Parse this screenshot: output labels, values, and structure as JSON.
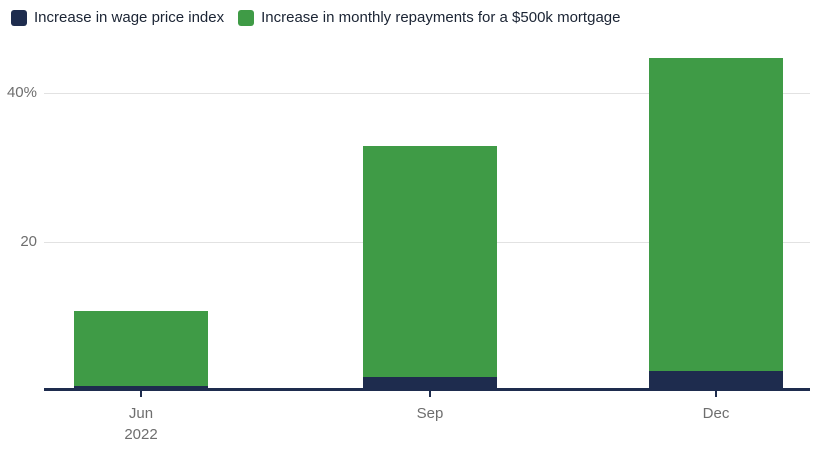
{
  "chart_data": {
    "type": "bar",
    "stacked": true,
    "title": "",
    "categories": [
      "Jun 2022",
      "Sep 2022",
      "Dec 2022"
    ],
    "x_tick_labels": [
      [
        "Jun",
        "2022"
      ],
      [
        "Sep"
      ],
      [
        "Dec"
      ]
    ],
    "series": [
      {
        "name": "Increase in wage price index",
        "color": "#1e2c4e",
        "values": [
          0.7,
          1.9,
          2.7
        ]
      },
      {
        "name": "Increase in monthly repayments for a $500k mortgage",
        "color": "#3f9b46",
        "values": [
          10.0,
          31.0,
          42.0
        ]
      }
    ],
    "stack_totals_pct": [
      10.7,
      32.9,
      44.7
    ],
    "y_ticks": [
      {
        "value": 20,
        "label": "20"
      },
      {
        "value": 40,
        "label": "40%"
      }
    ],
    "ylim": [
      0,
      46
    ],
    "unit": "%",
    "grid": true,
    "legend_position": "top-left",
    "axis_color": "#1e2c4e",
    "gridline_color": "#e2e2e2",
    "tick_label_color": "#6e6e6e"
  }
}
